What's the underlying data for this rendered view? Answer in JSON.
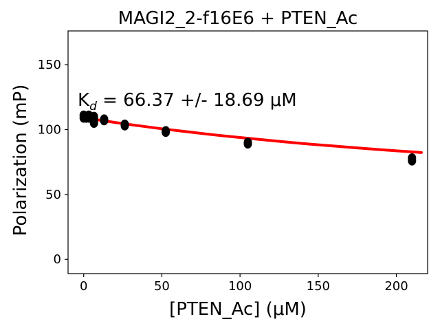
{
  "chart_data": {
    "type": "scatter",
    "title": "MAGI2_2-f16E6 + PTEN_Ac",
    "xlabel": "[PTEN_Ac] (μM)",
    "ylabel": "Polarization (mP)",
    "xlim": [
      -10,
      220
    ],
    "ylim": [
      -11,
      176
    ],
    "xticks": [
      0,
      50,
      100,
      150,
      200
    ],
    "yticks": [
      0,
      50,
      100,
      150
    ],
    "annotation": {
      "prefix": "K",
      "subscript": "d",
      "text": " = 66.37 +/- 18.69 μM"
    },
    "fit": {
      "color": "#ff0000",
      "x": [
        0,
        5,
        10,
        15,
        20,
        30,
        40,
        50,
        60,
        70,
        80,
        90,
        100,
        110,
        120,
        130,
        140,
        150,
        160,
        170,
        180,
        190,
        200,
        210,
        216
      ],
      "y": [
        109.3,
        108.3,
        107.3,
        106.4,
        105.5,
        103.8,
        102.2,
        100.6,
        99.2,
        97.8,
        96.4,
        95.1,
        93.9,
        92.7,
        91.5,
        90.4,
        89.3,
        88.3,
        87.3,
        86.3,
        85.4,
        84.5,
        83.6,
        82.8,
        82.3
      ]
    },
    "points": {
      "color": "#000000",
      "x": [
        0,
        0,
        1.6,
        1.6,
        3.3,
        3.3,
        6.6,
        6.6,
        6.6,
        13.1,
        13.1,
        26.3,
        26.3,
        52.5,
        52.5,
        105,
        105,
        210,
        210
      ],
      "y": [
        109,
        111,
        110,
        109,
        111,
        109,
        110,
        108,
        105,
        108,
        107,
        104,
        103,
        99,
        98,
        90,
        89,
        78,
        76
      ]
    }
  }
}
